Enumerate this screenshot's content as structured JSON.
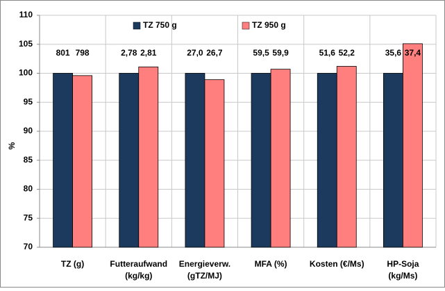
{
  "chart_data": {
    "type": "bar",
    "y_label": "%",
    "categories": [
      [
        "TZ (g)"
      ],
      [
        "Futteraufwand",
        "(kg/kg)"
      ],
      [
        "Energieverw.",
        "(gTZ/MJ)"
      ],
      [
        "MFA (%)"
      ],
      [
        "Kosten (€/Ms)"
      ],
      [
        "HP-Soja",
        "(kg/Ms)"
      ]
    ],
    "series": [
      {
        "name": "TZ 750 g",
        "color": "#1b3a5e",
        "values": [
          100,
          100,
          100,
          100,
          100,
          100
        ],
        "absolute_labels": [
          "801",
          "2,78",
          "27,0",
          "59,5",
          "51,6",
          "35,6"
        ]
      },
      {
        "name": "TZ 950 g",
        "color": "#ff7f7f",
        "values": [
          99.6,
          101.1,
          98.9,
          100.7,
          101.2,
          105.1
        ],
        "absolute_labels": [
          "798",
          "2,81",
          "26,7",
          "59,9",
          "52,2",
          "37,4"
        ]
      }
    ],
    "ylim": [
      70,
      110
    ],
    "yticks": [
      70,
      75,
      80,
      85,
      90,
      95,
      100,
      105,
      110
    ],
    "grid": true
  }
}
